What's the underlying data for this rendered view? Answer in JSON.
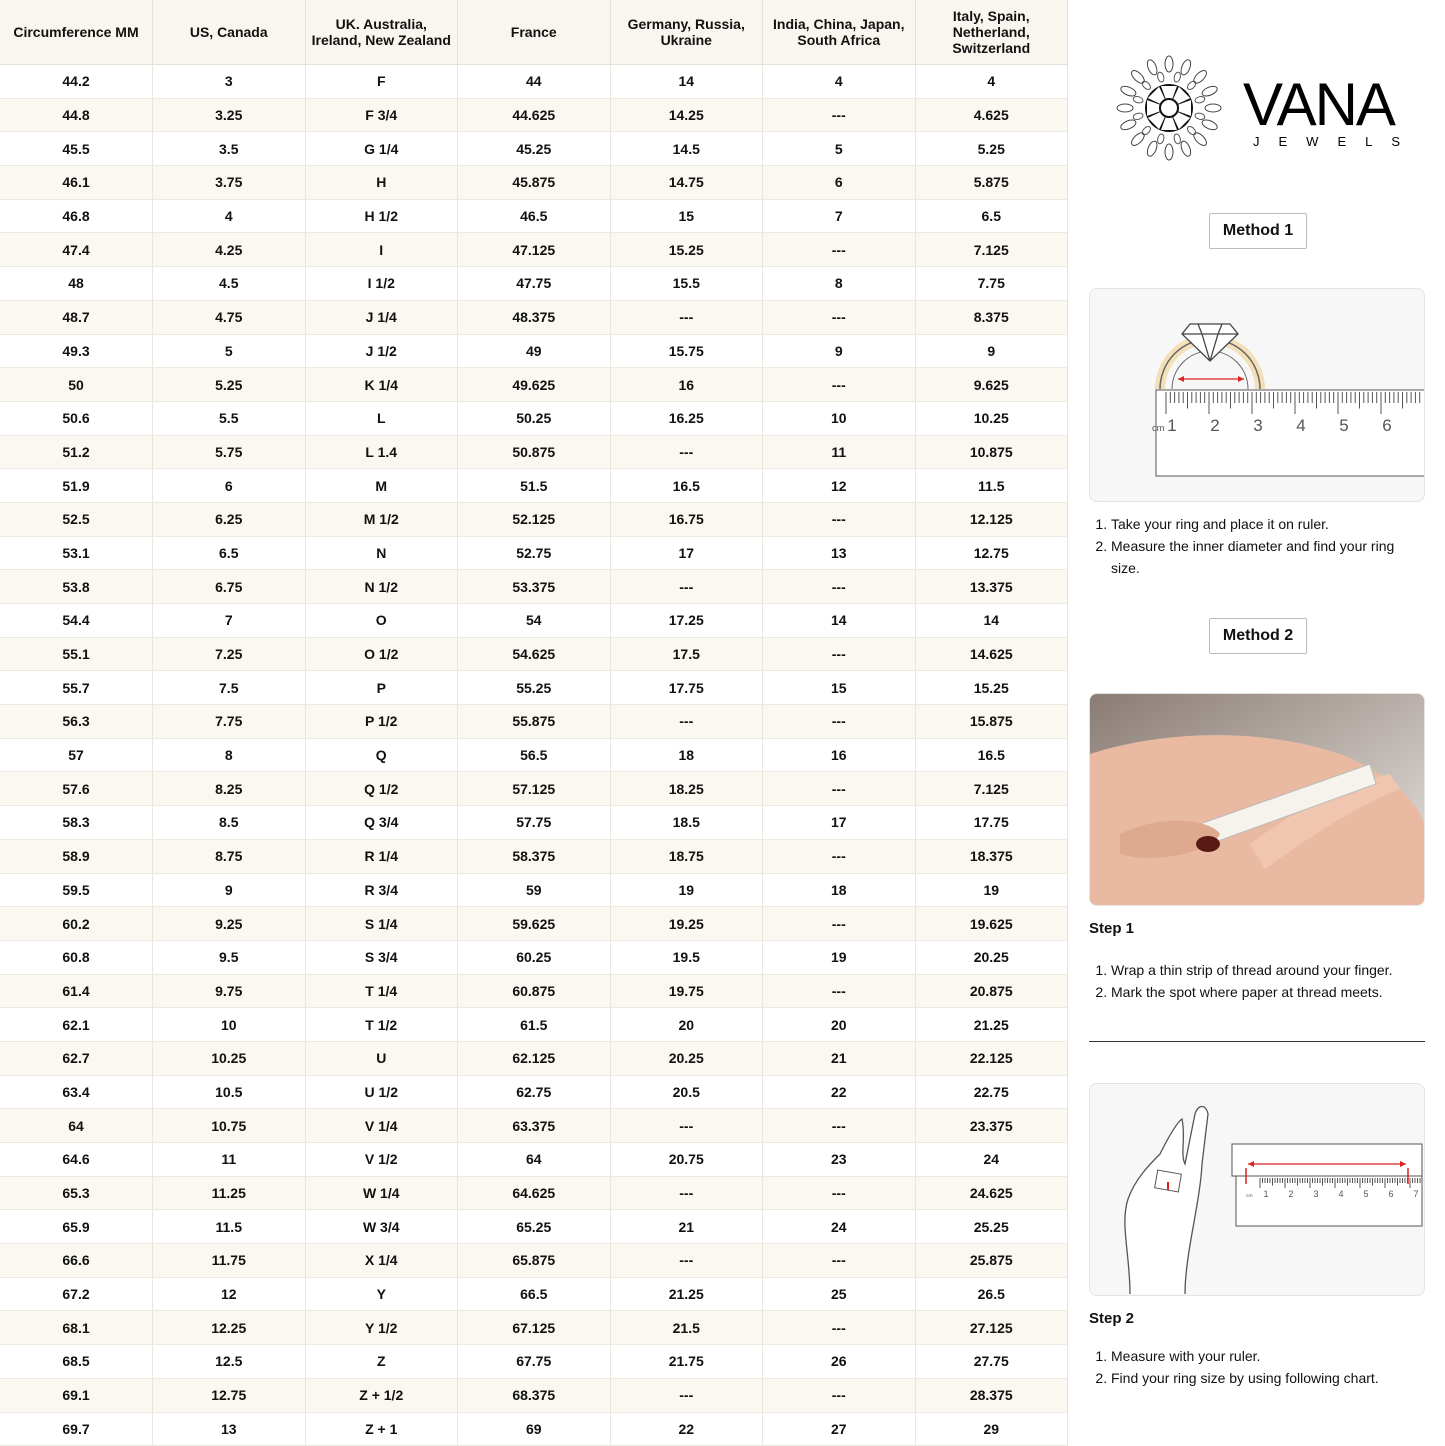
{
  "table": {
    "header": [
      "Circumference MM",
      "US, Canada",
      "UK. Australia, Ireland, New Zealand",
      "France",
      "Germany, Russia, Ukraine",
      "India, China, Japan, South Africa",
      "Italy, Spain, Netherland, Switzerland"
    ],
    "rows": [
      [
        "44.2",
        "3",
        "F",
        "44",
        "14",
        "4",
        "4"
      ],
      [
        "44.8",
        "3.25",
        "F 3/4",
        "44.625",
        "14.25",
        "---",
        "4.625"
      ],
      [
        "45.5",
        "3.5",
        "G 1/4",
        "45.25",
        "14.5",
        "5",
        "5.25"
      ],
      [
        "46.1",
        "3.75",
        "H",
        "45.875",
        "14.75",
        "6",
        "5.875"
      ],
      [
        "46.8",
        "4",
        "H 1/2",
        "46.5",
        "15",
        "7",
        "6.5"
      ],
      [
        "47.4",
        "4.25",
        "I",
        "47.125",
        "15.25",
        "---",
        "7.125"
      ],
      [
        "48",
        "4.5",
        "I 1/2",
        "47.75",
        "15.5",
        "8",
        "7.75"
      ],
      [
        "48.7",
        "4.75",
        "J 1/4",
        "48.375",
        "---",
        "---",
        "8.375"
      ],
      [
        "49.3",
        "5",
        "J 1/2",
        "49",
        "15.75",
        "9",
        "9"
      ],
      [
        "50",
        "5.25",
        "K 1/4",
        "49.625",
        "16",
        "---",
        "9.625"
      ],
      [
        "50.6",
        "5.5",
        "L",
        "50.25",
        "16.25",
        "10",
        "10.25"
      ],
      [
        "51.2",
        "5.75",
        "L 1.4",
        "50.875",
        "---",
        "11",
        "10.875"
      ],
      [
        "51.9",
        "6",
        "M",
        "51.5",
        "16.5",
        "12",
        "11.5"
      ],
      [
        "52.5",
        "6.25",
        "M 1/2",
        "52.125",
        "16.75",
        "---",
        "12.125"
      ],
      [
        "53.1",
        "6.5",
        "N",
        "52.75",
        "17",
        "13",
        "12.75"
      ],
      [
        "53.8",
        "6.75",
        "N 1/2",
        "53.375",
        "---",
        "---",
        "13.375"
      ],
      [
        "54.4",
        "7",
        "O",
        "54",
        "17.25",
        "14",
        "14"
      ],
      [
        "55.1",
        "7.25",
        "O 1/2",
        "54.625",
        "17.5",
        "---",
        "14.625"
      ],
      [
        "55.7",
        "7.5",
        "P",
        "55.25",
        "17.75",
        "15",
        "15.25"
      ],
      [
        "56.3",
        "7.75",
        "P 1/2",
        "55.875",
        "---",
        "---",
        "15.875"
      ],
      [
        "57",
        "8",
        "Q",
        "56.5",
        "18",
        "16",
        "16.5"
      ],
      [
        "57.6",
        "8.25",
        "Q 1/2",
        "57.125",
        "18.25",
        "---",
        "7.125"
      ],
      [
        "58.3",
        "8.5",
        "Q 3/4",
        "57.75",
        "18.5",
        "17",
        "17.75"
      ],
      [
        "58.9",
        "8.75",
        "R 1/4",
        "58.375",
        "18.75",
        "---",
        "18.375"
      ],
      [
        "59.5",
        "9",
        "R 3/4",
        "59",
        "19",
        "18",
        "19"
      ],
      [
        "60.2",
        "9.25",
        "S 1/4",
        "59.625",
        "19.25",
        "---",
        "19.625"
      ],
      [
        "60.8",
        "9.5",
        "S 3/4",
        "60.25",
        "19.5",
        "19",
        "20.25"
      ],
      [
        "61.4",
        "9.75",
        "T 1/4",
        "60.875",
        "19.75",
        "---",
        "20.875"
      ],
      [
        "62.1",
        "10",
        "T 1/2",
        "61.5",
        "20",
        "20",
        "21.25"
      ],
      [
        "62.7",
        "10.25",
        "U",
        "62.125",
        "20.25",
        "21",
        "22.125"
      ],
      [
        "63.4",
        "10.5",
        "U 1/2",
        "62.75",
        "20.5",
        "22",
        "22.75"
      ],
      [
        "64",
        "10.75",
        "V 1/4",
        "63.375",
        "---",
        "---",
        "23.375"
      ],
      [
        "64.6",
        "11",
        "V 1/2",
        "64",
        "20.75",
        "23",
        "24"
      ],
      [
        "65.3",
        "11.25",
        "W 1/4",
        "64.625",
        "---",
        "---",
        "24.625"
      ],
      [
        "65.9",
        "11.5",
        "W 3/4",
        "65.25",
        "21",
        "24",
        "25.25"
      ],
      [
        "66.6",
        "11.75",
        "X 1/4",
        "65.875",
        "---",
        "---",
        "25.875"
      ],
      [
        "67.2",
        "12",
        "Y",
        "66.5",
        "21.25",
        "25",
        "26.5"
      ],
      [
        "68.1",
        "12.25",
        "Y 1/2",
        "67.125",
        "21.5",
        "---",
        "27.125"
      ],
      [
        "68.5",
        "12.5",
        "Z",
        "67.75",
        "21.75",
        "26",
        "27.75"
      ],
      [
        "69.1",
        "12.75",
        "Z + 1/2",
        "68.375",
        "---",
        "---",
        "28.375"
      ],
      [
        "69.7",
        "13",
        "Z + 1",
        "69",
        "22",
        "27",
        "29"
      ]
    ]
  },
  "logo": {
    "name": "VANA",
    "sub": "JEWELS"
  },
  "method1": {
    "title": "Method 1",
    "ruler_unit": "cm",
    "ruler_numbers": [
      "1",
      "2",
      "3",
      "4",
      "5",
      "6"
    ],
    "steps": [
      "Take your ring and place it on ruler.",
      "Measure the inner diameter and find your ring size."
    ]
  },
  "method2": {
    "title": "Method 2",
    "step1": {
      "title": "Step 1",
      "steps": [
        "Wrap a thin strip of thread around your finger.",
        "Mark the spot where paper at thread meets."
      ]
    },
    "step2": {
      "title": "Step 2",
      "ruler_unit": "cm",
      "ruler_numbers": [
        "1",
        "2",
        "3",
        "4",
        "5",
        "6",
        "7"
      ],
      "steps": [
        "Measure with your ruler.",
        "Find your ring size by using following chart."
      ]
    }
  }
}
